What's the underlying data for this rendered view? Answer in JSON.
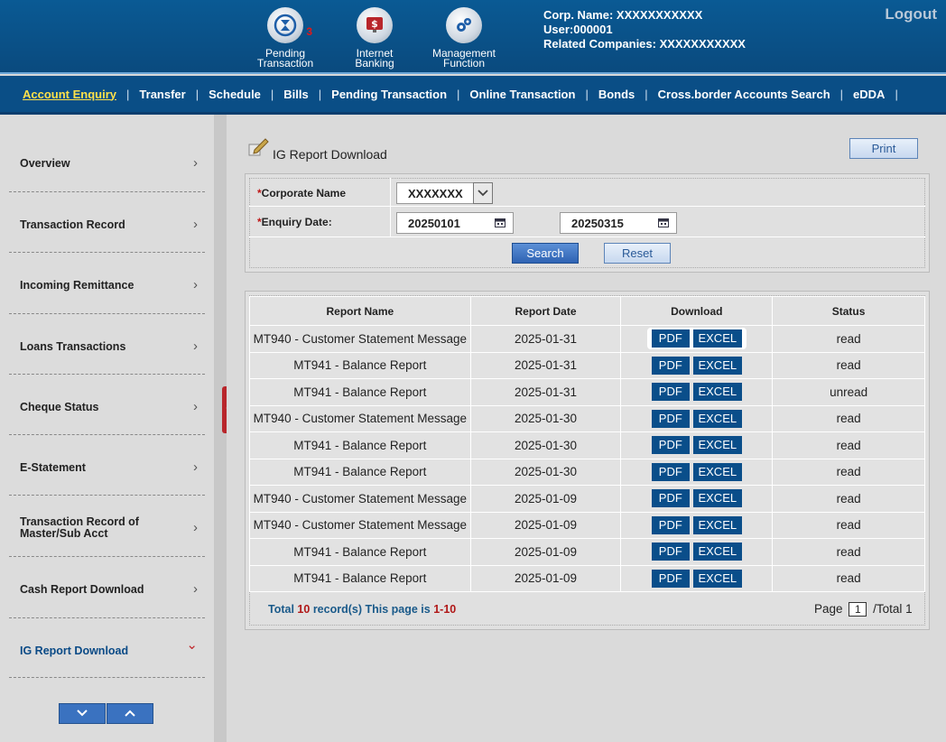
{
  "header": {
    "icons": [
      {
        "label_line1": "Pending",
        "label_line2": "Transaction",
        "badge": "3"
      },
      {
        "label_line1": "Internet",
        "label_line2": "Banking"
      },
      {
        "label_line1": "Management",
        "label_line2": "Function"
      }
    ],
    "corp_name": "Corp. Name: XXXXXXXXXXX",
    "user": "User:000001",
    "related": "Related Companies: XXXXXXXXXXX",
    "logout": "Logout"
  },
  "nav": {
    "items": [
      "Account Enquiry",
      "Transfer",
      "Schedule",
      "Bills",
      "Pending Transaction",
      "Online Transaction",
      "Bonds",
      "Cross.border Accounts Search",
      "eDDA"
    ],
    "sep": "|"
  },
  "sidebar": {
    "items": [
      {
        "label": "Overview"
      },
      {
        "label": "Transaction Record"
      },
      {
        "label": "Incoming Remittance"
      },
      {
        "label": "Loans Transactions"
      },
      {
        "label": "Cheque Status"
      },
      {
        "label": "E-Statement"
      },
      {
        "label": "Transaction Record of\nMaster/Sub Acct"
      },
      {
        "label": "Cash Report Download"
      },
      {
        "label": "IG Report Download"
      }
    ],
    "arrow": "›",
    "arrow_active": "⌄"
  },
  "page": {
    "title": "IG Report Download",
    "print": "Print"
  },
  "search": {
    "corporate_label": "Corporate Name",
    "corporate_value": "XXXXXXX",
    "date_label": "Enquiry Date:",
    "date_from": "20250101",
    "date_to": "20250315",
    "search_btn": "Search",
    "reset_btn": "Reset",
    "required_mark": "*"
  },
  "table": {
    "headers": [
      "Report Name",
      "Report Date",
      "Download",
      "Status"
    ],
    "pdf_label": "PDF",
    "excel_label": "EXCEL",
    "rows": [
      {
        "name": "MT940 - Customer Statement Message",
        "date": "2025-01-31",
        "status": "read"
      },
      {
        "name": "MT941 - Balance Report",
        "date": "2025-01-31",
        "status": "read"
      },
      {
        "name": "MT941 - Balance Report",
        "date": "2025-01-31",
        "status": "unread"
      },
      {
        "name": "MT940 - Customer Statement Message",
        "date": "2025-01-30",
        "status": "read"
      },
      {
        "name": "MT941 - Balance Report",
        "date": "2025-01-30",
        "status": "read"
      },
      {
        "name": "MT941 - Balance Report",
        "date": "2025-01-30",
        "status": "read"
      },
      {
        "name": "MT940 - Customer Statement Message",
        "date": "2025-01-09",
        "status": "read"
      },
      {
        "name": "MT940 - Customer Statement Message",
        "date": "2025-01-09",
        "status": "read"
      },
      {
        "name": "MT941 - Balance Report",
        "date": "2025-01-09",
        "status": "read"
      },
      {
        "name": "MT941 - Balance Report",
        "date": "2025-01-09",
        "status": "read"
      }
    ]
  },
  "footer": {
    "total_prefix": "Total",
    "total_count": "10",
    "total_mid": "record(s) This page is",
    "range": "1-10",
    "page_label": "Page",
    "page_num": "1",
    "total_pages": "/Total 1"
  },
  "colors": {
    "brand": "#0a4e86",
    "accent": "#ffe14a",
    "alert": "#c0282c"
  }
}
